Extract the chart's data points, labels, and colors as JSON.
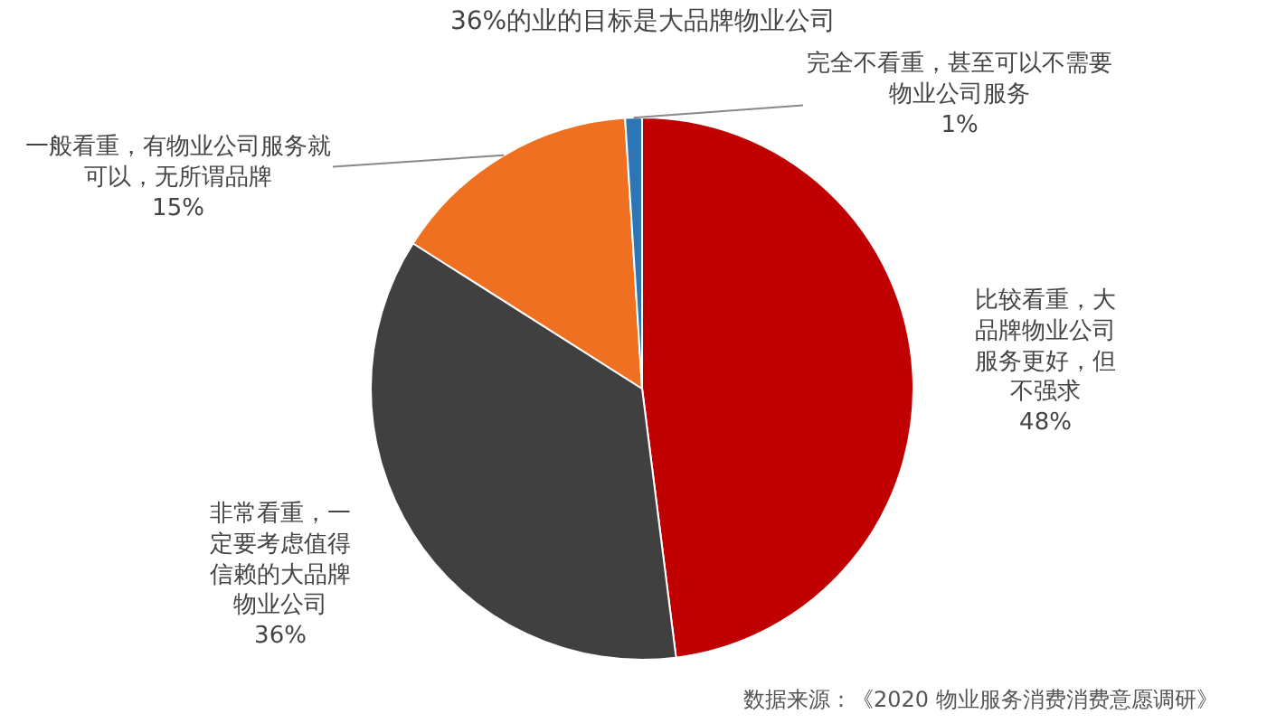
{
  "chart_data": {
    "type": "pie",
    "title": "36%的业的目标是大品牌物业公司",
    "categories": [
      "比较看重，大品牌物业公司服务更好，但不强求",
      "非常看重，一定要考虑值得信赖的大品牌物业公司",
      "一般看重，有物业公司服务就可以，无所谓品牌",
      "完全不看重，甚至可以不需要物业公司服务"
    ],
    "values": [
      48,
      36,
      15,
      1
    ],
    "value_labels": [
      "48%",
      "36%",
      "15%",
      "1%"
    ],
    "colors": [
      "#c00000",
      "#404040",
      "#ee7020",
      "#2e75b6"
    ],
    "legend": false,
    "annotations": [
      "数据来源：《2020 物业服务消费消费意愿调研》"
    ]
  }
}
